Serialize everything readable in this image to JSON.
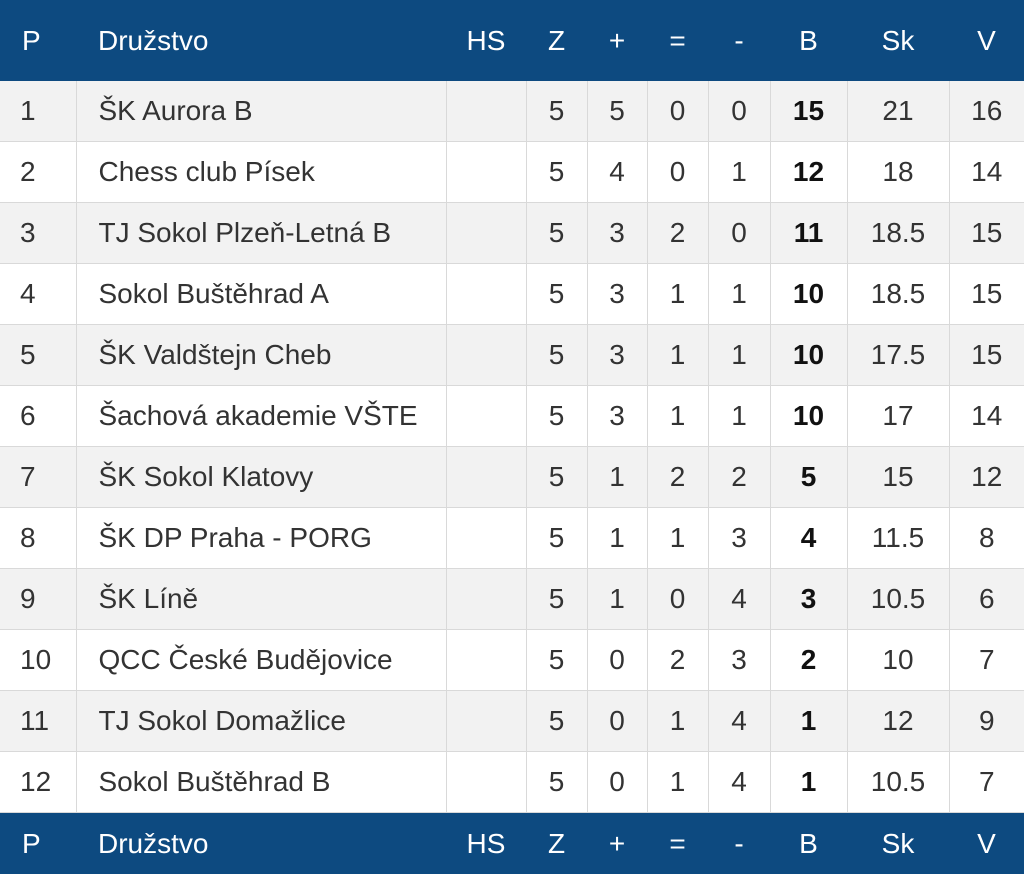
{
  "headers": {
    "p": "P",
    "team": "Družstvo",
    "hs": "HS",
    "z": "Z",
    "w": "+",
    "d": "=",
    "l": "-",
    "b": "B",
    "sk": "Sk",
    "v": "V"
  },
  "rows": [
    {
      "p": "1",
      "team": "ŠK Aurora B",
      "hs": "",
      "z": "5",
      "w": "5",
      "d": "0",
      "l": "0",
      "b": "15",
      "sk": "21",
      "v": "16"
    },
    {
      "p": "2",
      "team": "Chess club Písek",
      "hs": "",
      "z": "5",
      "w": "4",
      "d": "0",
      "l": "1",
      "b": "12",
      "sk": "18",
      "v": "14"
    },
    {
      "p": "3",
      "team": "TJ Sokol Plzeň-Letná B",
      "hs": "",
      "z": "5",
      "w": "3",
      "d": "2",
      "l": "0",
      "b": "11",
      "sk": "18.5",
      "v": "15"
    },
    {
      "p": "4",
      "team": "Sokol Buštěhrad A",
      "hs": "",
      "z": "5",
      "w": "3",
      "d": "1",
      "l": "1",
      "b": "10",
      "sk": "18.5",
      "v": "15"
    },
    {
      "p": "5",
      "team": "ŠK Valdštejn Cheb",
      "hs": "",
      "z": "5",
      "w": "3",
      "d": "1",
      "l": "1",
      "b": "10",
      "sk": "17.5",
      "v": "15"
    },
    {
      "p": "6",
      "team": "Šachová akademie VŠTE",
      "hs": "",
      "z": "5",
      "w": "3",
      "d": "1",
      "l": "1",
      "b": "10",
      "sk": "17",
      "v": "14"
    },
    {
      "p": "7",
      "team": "ŠK Sokol Klatovy",
      "hs": "",
      "z": "5",
      "w": "1",
      "d": "2",
      "l": "2",
      "b": "5",
      "sk": "15",
      "v": "12"
    },
    {
      "p": "8",
      "team": "ŠK DP Praha - PORG",
      "hs": "",
      "z": "5",
      "w": "1",
      "d": "1",
      "l": "3",
      "b": "4",
      "sk": "11.5",
      "v": "8"
    },
    {
      "p": "9",
      "team": "ŠK Líně",
      "hs": "",
      "z": "5",
      "w": "1",
      "d": "0",
      "l": "4",
      "b": "3",
      "sk": "10.5",
      "v": "6"
    },
    {
      "p": "10",
      "team": "QCC České Budějovice",
      "hs": "",
      "z": "5",
      "w": "0",
      "d": "2",
      "l": "3",
      "b": "2",
      "sk": "10",
      "v": "7"
    },
    {
      "p": "11",
      "team": "TJ Sokol Domažlice",
      "hs": "",
      "z": "5",
      "w": "0",
      "d": "1",
      "l": "4",
      "b": "1",
      "sk": "12",
      "v": "9"
    },
    {
      "p": "12",
      "team": "Sokol Buštěhrad B",
      "hs": "",
      "z": "5",
      "w": "0",
      "d": "1",
      "l": "4",
      "b": "1",
      "sk": "10.5",
      "v": "7"
    }
  ],
  "colors": {
    "header_bg": "#0d4a80",
    "header_text": "#ffffff",
    "row_alt_bg": "#f2f2f2",
    "row_bg": "#ffffff"
  }
}
